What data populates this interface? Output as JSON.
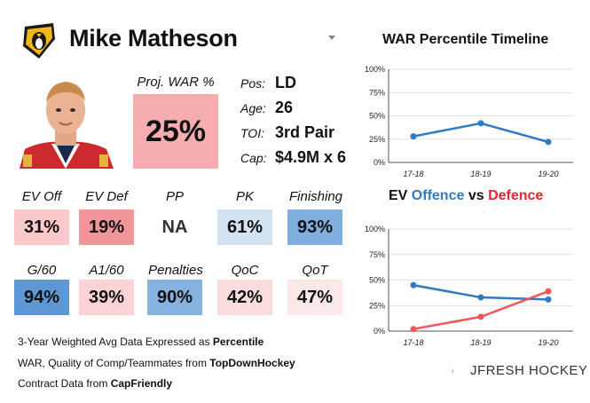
{
  "player": {
    "name": "Mike Matheson",
    "proj_war_label": "Proj. WAR %",
    "proj_war_value": "25%",
    "proj_war_color": "#f7adb0"
  },
  "info": [
    {
      "label": "Pos:",
      "value": "LD"
    },
    {
      "label": "Age:",
      "value": "26"
    },
    {
      "label": "TOI:",
      "value": "3rd Pair"
    },
    {
      "label": "Cap:",
      "value": "$4.9M x 6"
    }
  ],
  "stats_row1": [
    {
      "label": "EV Off",
      "value": "31%",
      "color": "#fbc8cb"
    },
    {
      "label": "EV Def",
      "value": "19%",
      "color": "#f29598"
    },
    {
      "label": "PP",
      "value": "NA",
      "color": "#ffffff"
    },
    {
      "label": "PK",
      "value": "61%",
      "color": "#d3e3f2"
    },
    {
      "label": "Finishing",
      "value": "93%",
      "color": "#7faedf"
    }
  ],
  "stats_row2": [
    {
      "label": "G/60",
      "value": "94%",
      "color": "#5e98d4"
    },
    {
      "label": "A1/60",
      "value": "39%",
      "color": "#fbd3d5"
    },
    {
      "label": "Penalties",
      "value": "90%",
      "color": "#86b2df"
    },
    {
      "label": "QoC",
      "value": "42%",
      "color": "#fcdcdd"
    },
    {
      "label": "QoT",
      "value": "47%",
      "color": "#fbe9ea"
    }
  ],
  "footnotes": {
    "line1_text": "3-Year Weighted Avg Data Expressed as ",
    "line1_bold": "Percentile",
    "line2_text": "WAR, Quality of Comp/Teammates from ",
    "line2_bold": "TopDownHockey",
    "line3_text": "Contract Data from ",
    "line3_bold": "CapFriendly"
  },
  "brand": {
    "name": "JFRESH HOCKEY"
  },
  "ev_title": {
    "prefix": "EV ",
    "offence": "Offence",
    "mid": " vs ",
    "defence": "Defence"
  },
  "chart_data": [
    {
      "type": "line",
      "title": "WAR Percentile Timeline",
      "x": [
        "17-18",
        "18-19",
        "19-20"
      ],
      "ylim": [
        0,
        100
      ],
      "yticks": [
        "0%",
        "25%",
        "50%",
        "75%",
        "100%"
      ],
      "series": [
        {
          "values": [
            28,
            42,
            22
          ],
          "color": "#2f7ac2"
        }
      ],
      "grid": "horizontal"
    },
    {
      "type": "line",
      "title": "EV Offence vs Defence",
      "x": [
        "17-18",
        "18-19",
        "19-20"
      ],
      "ylim": [
        0,
        100
      ],
      "yticks": [
        "0%",
        "25%",
        "50%",
        "75%",
        "100%"
      ],
      "series": [
        {
          "name": "Offence",
          "values": [
            45,
            33,
            31
          ],
          "color": "#2f7ac2"
        },
        {
          "name": "Defence",
          "values": [
            2,
            14,
            39
          ],
          "color": "#f0565c"
        }
      ],
      "grid": "horizontal"
    }
  ]
}
